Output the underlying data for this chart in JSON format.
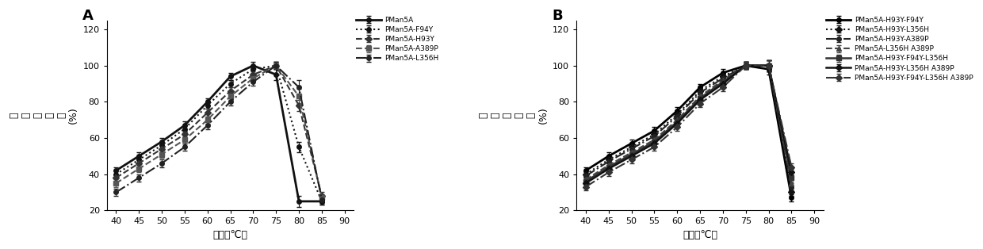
{
  "temps": [
    40,
    45,
    50,
    55,
    60,
    65,
    70,
    75,
    80,
    85,
    90
  ],
  "panel_A": {
    "title": "A",
    "series": [
      {
        "label": "PMan5A",
        "linestyle": "-",
        "marker": "o",
        "color": "#111111",
        "linewidth": 2.0,
        "markersize": 4,
        "values": [
          42,
          50,
          58,
          67,
          80,
          94,
          100,
          95,
          25,
          25,
          null
        ],
        "errors": [
          2,
          2,
          2,
          2,
          2,
          2,
          2,
          3,
          3,
          2,
          null
        ]
      },
      {
        "label": "PMan5A-F94Y",
        "linestyle": ":",
        "marker": "o",
        "color": "#111111",
        "linewidth": 1.5,
        "markersize": 4,
        "values": [
          40,
          48,
          56,
          65,
          78,
          90,
          98,
          100,
          55,
          25,
          null
        ],
        "errors": [
          2,
          2,
          2,
          2,
          2,
          2,
          2,
          2,
          3,
          2,
          null
        ]
      },
      {
        "label": "PMan5A-H93Y",
        "linestyle": "--",
        "marker": "D",
        "color": "#333333",
        "linewidth": 1.5,
        "markersize": 4,
        "values": [
          38,
          46,
          54,
          62,
          74,
          86,
          95,
          100,
          78,
          28,
          null
        ],
        "errors": [
          2,
          2,
          2,
          2,
          2,
          2,
          2,
          2,
          3,
          2,
          null
        ]
      },
      {
        "label": "PMan5A-A389P",
        "linestyle": "--",
        "marker": "s",
        "color": "#555555",
        "linewidth": 1.5,
        "markersize": 4,
        "values": [
          35,
          43,
          51,
          59,
          70,
          83,
          93,
          100,
          83,
          27,
          null
        ],
        "errors": [
          2,
          2,
          2,
          2,
          2,
          2,
          2,
          2,
          4,
          2,
          null
        ]
      },
      {
        "label": "PMan5A-L356H",
        "linestyle": "-.",
        "marker": "o",
        "color": "#222222",
        "linewidth": 1.5,
        "markersize": 4,
        "values": [
          30,
          38,
          46,
          55,
          67,
          80,
          91,
          100,
          88,
          26,
          null
        ],
        "errors": [
          2,
          2,
          2,
          2,
          2,
          2,
          2,
          2,
          4,
          2,
          null
        ]
      }
    ]
  },
  "panel_B": {
    "title": "B",
    "series": [
      {
        "label": "PMan5A-H93Y-F94Y",
        "linestyle": "-",
        "marker": "o",
        "color": "#000000",
        "linewidth": 2.0,
        "markersize": 4,
        "values": [
          42,
          50,
          57,
          64,
          75,
          88,
          96,
          100,
          98,
          27,
          null
        ],
        "errors": [
          2,
          2,
          2,
          2,
          2,
          2,
          2,
          2,
          3,
          2,
          null
        ]
      },
      {
        "label": "PMan5A-H93Y-L356H",
        "linestyle": ":",
        "marker": "D",
        "color": "#111111",
        "linewidth": 1.5,
        "markersize": 4,
        "values": [
          40,
          48,
          55,
          62,
          73,
          86,
          94,
          100,
          100,
          30,
          null
        ],
        "errors": [
          2,
          2,
          2,
          2,
          2,
          2,
          2,
          2,
          3,
          2,
          null
        ]
      },
      {
        "label": "PMan5A-H93Y-A389P",
        "linestyle": "-.",
        "marker": "o",
        "color": "#222222",
        "linewidth": 1.5,
        "markersize": 4,
        "values": [
          39,
          47,
          54,
          61,
          72,
          85,
          93,
          100,
          100,
          33,
          null
        ],
        "errors": [
          2,
          2,
          2,
          2,
          2,
          2,
          2,
          2,
          3,
          2,
          null
        ]
      },
      {
        "label": "PMan5A-L356H A389P",
        "linestyle": "--",
        "marker": "^",
        "color": "#444444",
        "linewidth": 1.5,
        "markersize": 4,
        "values": [
          37,
          45,
          52,
          59,
          70,
          83,
          92,
          100,
          100,
          35,
          null
        ],
        "errors": [
          2,
          2,
          2,
          2,
          2,
          2,
          2,
          2,
          3,
          2,
          null
        ]
      },
      {
        "label": "PMan5A-H93Y-F94Y-L356H",
        "linestyle": "-",
        "marker": "s",
        "color": "#333333",
        "linewidth": 1.8,
        "markersize": 4,
        "values": [
          36,
          44,
          51,
          58,
          69,
          82,
          91,
          100,
          100,
          38,
          null
        ],
        "errors": [
          2,
          2,
          2,
          2,
          2,
          2,
          2,
          2,
          3,
          2,
          null
        ]
      },
      {
        "label": "PMan5A-H93Y-L356H A389P",
        "linestyle": "-",
        "marker": "D",
        "color": "#111111",
        "linewidth": 1.8,
        "markersize": 4,
        "values": [
          35,
          43,
          50,
          57,
          68,
          81,
          90,
          100,
          100,
          41,
          null
        ],
        "errors": [
          2,
          2,
          2,
          2,
          2,
          2,
          2,
          2,
          3,
          2,
          null
        ]
      },
      {
        "label": "PMan5A-H93Y-F94Y-L356H A389P",
        "linestyle": "-.",
        "marker": "D",
        "color": "#333333",
        "linewidth": 1.5,
        "markersize": 4,
        "values": [
          33,
          41,
          48,
          55,
          66,
          79,
          88,
          100,
          100,
          44,
          null
        ],
        "errors": [
          2,
          2,
          2,
          2,
          2,
          2,
          2,
          2,
          3,
          2,
          null
        ]
      }
    ]
  },
  "xlim": [
    38,
    92
  ],
  "ylim": [
    20,
    125
  ],
  "yticks": [
    20,
    40,
    60,
    80,
    100,
    120
  ],
  "xticks": [
    40,
    45,
    50,
    55,
    60,
    65,
    70,
    75,
    80,
    85,
    90
  ],
  "ylabel_chars": [
    "相",
    "对",
    "酶",
    "活",
    "力",
    "(%)"
  ],
  "xlabel": "温度（℃）",
  "bg_color": "#ffffff",
  "tick_fontsize": 8,
  "label_fontsize": 9,
  "legend_fontsize": 6.5,
  "panel_label_fontsize": 13
}
